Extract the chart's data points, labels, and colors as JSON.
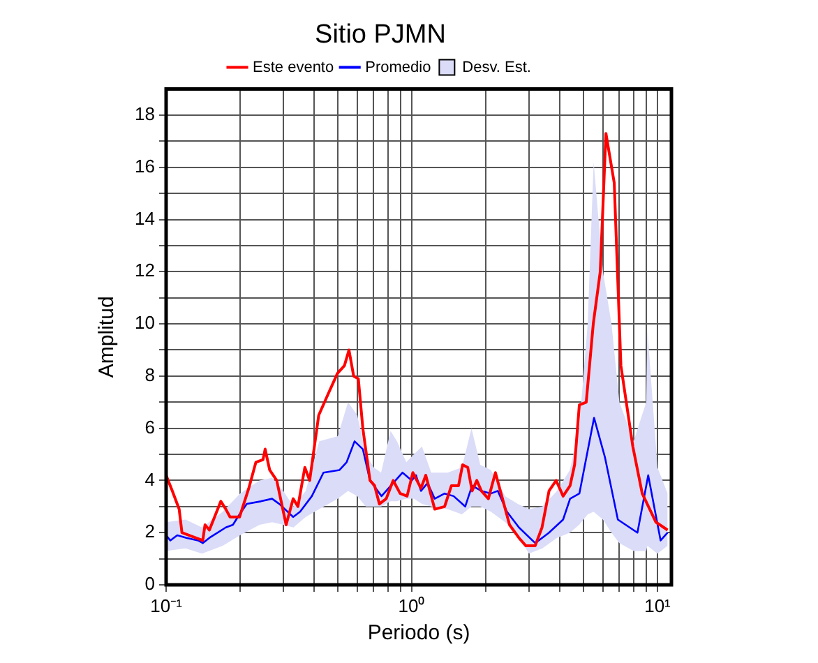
{
  "chart_data": {
    "type": "line",
    "title": "Sitio PJMN",
    "xlabel": "Periodo (s)",
    "ylabel": "Amplitud",
    "log": "x",
    "grid": true,
    "legend": "top",
    "marker": "none",
    "xlim": [
      0.1,
      11.4
    ],
    "ylim": [
      0,
      19
    ],
    "xticks": [
      {
        "value": 0.1,
        "label": "10⁻¹"
      },
      {
        "value": 0.2,
        "label": null
      },
      {
        "value": 0.3,
        "label": null
      },
      {
        "value": 0.4,
        "label": null
      },
      {
        "value": 0.5,
        "label": null
      },
      {
        "value": 0.6,
        "label": null
      },
      {
        "value": 0.7,
        "label": null
      },
      {
        "value": 0.8,
        "label": null
      },
      {
        "value": 0.9,
        "label": null
      },
      {
        "value": 1,
        "label": "10⁰"
      },
      {
        "value": 2,
        "label": null
      },
      {
        "value": 3,
        "label": null
      },
      {
        "value": 4,
        "label": null
      },
      {
        "value": 5,
        "label": null
      },
      {
        "value": 6,
        "label": null
      },
      {
        "value": 7,
        "label": null
      },
      {
        "value": 8,
        "label": null
      },
      {
        "value": 9,
        "label": null
      },
      {
        "value": 10,
        "label": "10¹"
      }
    ],
    "yticks": [
      0,
      {
        "value": 1,
        "label": null
      },
      2,
      {
        "value": 3,
        "label": null
      },
      4,
      {
        "value": 5,
        "label": null
      },
      6,
      {
        "value": 7,
        "label": null
      },
      8,
      {
        "value": 9,
        "label": null
      },
      10,
      {
        "value": 11,
        "label": null
      },
      12,
      {
        "value": 13,
        "label": null
      },
      14,
      {
        "value": 15,
        "label": null
      },
      16,
      {
        "value": 17,
        "label": null
      },
      18
    ],
    "series": [
      {
        "name": "Este evento",
        "type": "line",
        "color": "#ff0000",
        "x": [
          0.1,
          0.106,
          0.113,
          0.116,
          0.132,
          0.141,
          0.144,
          0.15,
          0.167,
          0.175,
          0.182,
          0.199,
          0.217,
          0.232,
          0.248,
          0.253,
          0.264,
          0.282,
          0.308,
          0.329,
          0.344,
          0.367,
          0.384,
          0.418,
          0.456,
          0.498,
          0.532,
          0.555,
          0.58,
          0.606,
          0.632,
          0.676,
          0.706,
          0.738,
          0.787,
          0.84,
          0.897,
          0.957,
          1.01,
          1.09,
          1.14,
          1.24,
          1.36,
          1.45,
          1.55,
          1.61,
          1.69,
          1.76,
          1.84,
          1.92,
          2.05,
          2.19,
          2.34,
          2.5,
          2.73,
          2.91,
          3.18,
          3.39,
          3.62,
          3.87,
          4.13,
          4.41,
          4.6,
          4.81,
          5.13,
          5.48,
          5.85,
          6.17,
          6.67,
          7.1,
          7.94,
          8.67,
          9.86,
          11.0
        ],
        "values": [
          4.2,
          3.6,
          2.9,
          2.0,
          1.8,
          1.7,
          2.3,
          2.1,
          3.2,
          2.9,
          2.6,
          2.6,
          3.7,
          4.7,
          4.8,
          5.2,
          4.4,
          4.0,
          2.3,
          3.3,
          3.0,
          4.5,
          4.0,
          6.5,
          7.3,
          8.1,
          8.4,
          9.0,
          8.0,
          7.9,
          6.0,
          4.0,
          3.8,
          3.1,
          3.3,
          4.0,
          3.5,
          3.4,
          4.3,
          3.7,
          4.2,
          2.9,
          3.0,
          3.8,
          3.8,
          4.6,
          4.5,
          3.6,
          4.0,
          3.6,
          3.3,
          4.3,
          3.3,
          2.3,
          1.8,
          1.5,
          1.5,
          2.2,
          3.6,
          4.0,
          3.4,
          3.8,
          4.6,
          6.9,
          7.0,
          10.0,
          12.0,
          17.3,
          15.4,
          8.4,
          5.3,
          3.5,
          2.4,
          2.1
        ]
      },
      {
        "name": "Promedio",
        "type": "line",
        "color": "#0000ff",
        "x": [
          0.1,
          0.104,
          0.111,
          0.121,
          0.135,
          0.141,
          0.15,
          0.175,
          0.187,
          0.199,
          0.213,
          0.243,
          0.27,
          0.289,
          0.329,
          0.351,
          0.392,
          0.437,
          0.508,
          0.543,
          0.585,
          0.632,
          0.676,
          0.753,
          0.822,
          0.917,
          1.0,
          1.04,
          1.09,
          1.16,
          1.24,
          1.36,
          1.48,
          1.65,
          1.76,
          1.92,
          2.1,
          2.24,
          2.44,
          2.73,
          3.18,
          3.62,
          4.13,
          4.41,
          4.81,
          5.52,
          6.11,
          6.9,
          8.29,
          9.17,
          10.3,
          11.0
        ],
        "values": [
          1.9,
          1.7,
          1.9,
          1.8,
          1.7,
          1.6,
          1.8,
          2.2,
          2.3,
          2.7,
          3.1,
          3.2,
          3.3,
          3.1,
          2.6,
          2.8,
          3.4,
          4.3,
          4.4,
          4.7,
          5.5,
          5.2,
          4.0,
          3.4,
          3.8,
          4.3,
          4.0,
          4.2,
          3.6,
          3.9,
          3.3,
          3.5,
          3.4,
          3.0,
          3.8,
          3.6,
          3.5,
          3.6,
          2.8,
          2.2,
          1.6,
          2.0,
          2.5,
          3.3,
          3.5,
          6.4,
          4.9,
          2.5,
          2.0,
          4.2,
          1.7,
          2.0
        ]
      },
      {
        "name": "Desv. Est.",
        "type": "area",
        "color": "#dadcf8",
        "x": [
          0.1,
          0.12,
          0.14,
          0.17,
          0.2,
          0.24,
          0.27,
          0.3,
          0.33,
          0.37,
          0.42,
          0.5,
          0.55,
          0.6,
          0.65,
          0.7,
          0.75,
          0.82,
          0.87,
          0.95,
          1.02,
          1.1,
          1.2,
          1.4,
          1.6,
          1.75,
          1.9,
          2.1,
          2.4,
          2.7,
          3.0,
          3.4,
          3.9,
          4.4,
          4.8,
          5.2,
          5.5,
          6.0,
          6.5,
          7.0,
          8.0,
          9.0,
          9.1,
          10.0,
          11.0
        ],
        "values": [
          null,
          null,
          null,
          null,
          null,
          null,
          null,
          null,
          null,
          null,
          null,
          null,
          null,
          null,
          null,
          null,
          null,
          null,
          null,
          null,
          null,
          null,
          null,
          null,
          null,
          null,
          null,
          null,
          null,
          null,
          null,
          null,
          null,
          null,
          null,
          null,
          null,
          null,
          null,
          null,
          null,
          null,
          null,
          null,
          null
        ],
        "lower": [
          1.3,
          1.4,
          1.2,
          1.5,
          1.9,
          2.3,
          2.4,
          2.3,
          2.2,
          2.6,
          2.9,
          3.3,
          3.6,
          3.4,
          3.0,
          3.0,
          3.0,
          3.2,
          3.2,
          3.3,
          3.3,
          3.1,
          3.0,
          2.9,
          2.7,
          3.0,
          3.0,
          2.8,
          2.4,
          1.9,
          1.2,
          1.4,
          1.8,
          2.0,
          2.3,
          2.7,
          2.8,
          2.5,
          2.0,
          1.6,
          1.3,
          1.3,
          1.5,
          1.2,
          1.5
        ],
        "upper": [
          2.4,
          2.5,
          2.2,
          2.8,
          3.5,
          4.0,
          4.1,
          3.6,
          3.0,
          3.6,
          5.5,
          5.7,
          7.0,
          6.5,
          5.0,
          4.5,
          4.3,
          5.9,
          5.5,
          4.7,
          5.0,
          5.3,
          4.3,
          4.3,
          4.5,
          6.0,
          4.6,
          4.4,
          3.4,
          3.1,
          2.9,
          3.0,
          3.6,
          4.4,
          6.0,
          10.0,
          16.2,
          12.0,
          10.0,
          7.0,
          5.5,
          7.0,
          9.8,
          4.5,
          3.5
        ]
      }
    ]
  }
}
